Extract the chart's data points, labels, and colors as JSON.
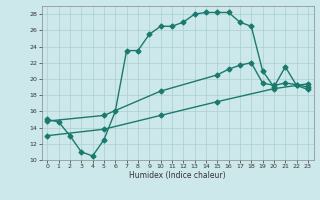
{
  "line1_x": [
    0,
    1,
    2,
    3,
    4,
    5,
    6,
    7,
    8,
    9,
    10,
    11,
    12,
    13,
    14,
    15,
    16,
    17,
    18,
    19,
    20,
    21,
    22,
    23
  ],
  "line1_y": [
    15.0,
    14.7,
    13.0,
    11.0,
    10.5,
    12.5,
    16.0,
    23.5,
    23.5,
    25.5,
    26.5,
    26.5,
    27.0,
    28.0,
    28.2,
    28.2,
    28.2,
    27.0,
    26.5,
    21.0,
    19.0,
    21.5,
    19.2,
    18.7
  ],
  "line2_x": [
    0,
    5,
    10,
    15,
    16,
    17,
    18,
    19,
    20,
    21,
    22,
    23
  ],
  "line2_y": [
    14.8,
    15.5,
    18.5,
    20.5,
    21.2,
    21.7,
    22.0,
    19.5,
    19.2,
    19.5,
    19.3,
    19.0
  ],
  "line3_x": [
    0,
    5,
    10,
    15,
    20,
    23
  ],
  "line3_y": [
    13.0,
    13.8,
    15.5,
    17.2,
    18.8,
    19.4
  ],
  "color": "#1a7a6e",
  "bg_color": "#cde8ea",
  "grid_color": "#aacfcf",
  "xlabel": "Humidex (Indice chaleur)",
  "xlim": [
    -0.5,
    23.5
  ],
  "ylim": [
    10,
    29
  ],
  "yticks": [
    10,
    12,
    14,
    16,
    18,
    20,
    22,
    24,
    26,
    28
  ],
  "xticks": [
    0,
    1,
    2,
    3,
    4,
    5,
    6,
    7,
    8,
    9,
    10,
    11,
    12,
    13,
    14,
    15,
    16,
    17,
    18,
    19,
    20,
    21,
    22,
    23
  ],
  "marker": "D",
  "markersize": 2.5,
  "linewidth": 1.0
}
